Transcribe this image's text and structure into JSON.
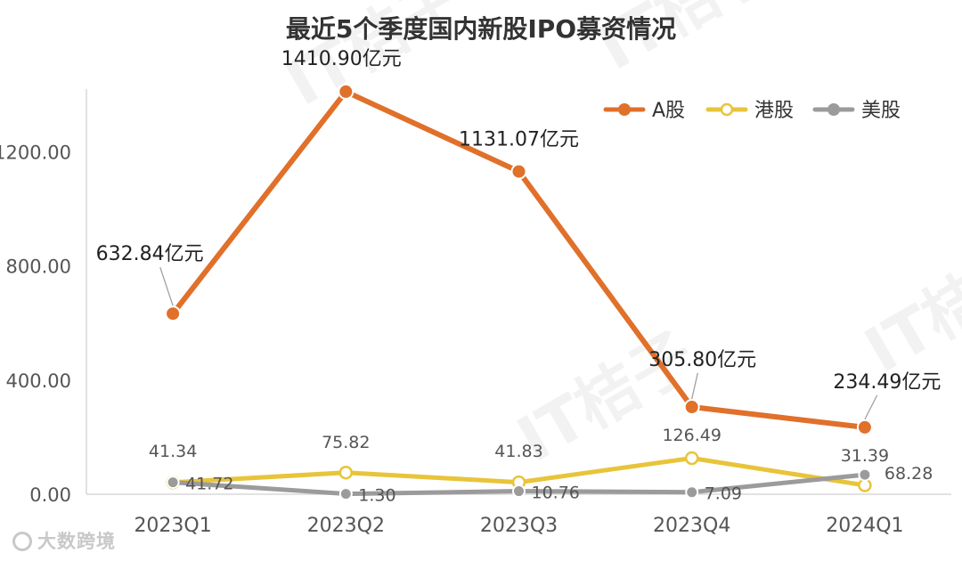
{
  "chart_data": {
    "type": "line",
    "title": "最近5个季度国内新股IPO募资情况",
    "categories": [
      "2023Q1",
      "2023Q2",
      "2023Q3",
      "2023Q4",
      "2024Q1"
    ],
    "ylim": [
      0,
      1420
    ],
    "yticks": [
      "0.00",
      "400.00",
      "800.00",
      "1200.00"
    ],
    "ytick_values": [
      0,
      400,
      800,
      1200
    ],
    "series": [
      {
        "name": "A股",
        "color": "#e0702a",
        "values": [
          632.84,
          1410.9,
          1131.07,
          305.8,
          234.49
        ],
        "labels": [
          "632.84亿元",
          "1410.90亿元",
          "1131.07亿元",
          "305.80亿元",
          "234.49亿元"
        ]
      },
      {
        "name": "港股",
        "color": "#e8c43a",
        "values": [
          41.34,
          75.82,
          41.83,
          126.49,
          31.39
        ],
        "labels": [
          "41.34",
          "75.82",
          "41.83",
          "126.49",
          "31.39"
        ]
      },
      {
        "name": "美股",
        "color": "#9b9b9b",
        "values": [
          41.72,
          1.3,
          10.76,
          7.09,
          68.28
        ],
        "labels": [
          "41.72",
          "1.30",
          "10.76",
          "7.09",
          "68.28"
        ]
      }
    ]
  },
  "watermark": {
    "text": "IT桔子"
  },
  "brand": {
    "text": "大数跨境"
  }
}
